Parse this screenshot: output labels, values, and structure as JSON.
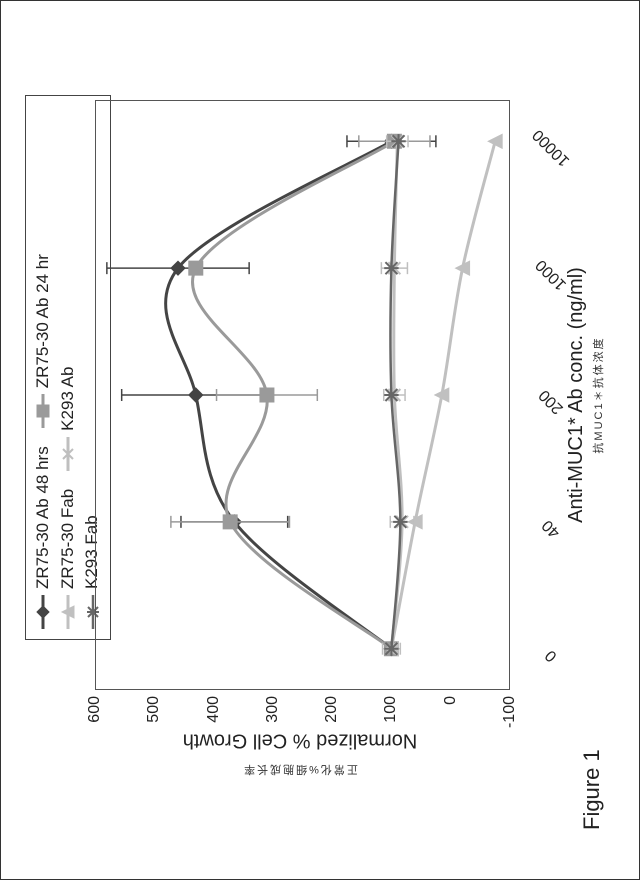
{
  "figure_label": "Figure 1",
  "xlabel": "Anti-MUC1* Ab conc. (ng/ml)",
  "ylabel": "Normalized % Cell Growth",
  "chinese_x": "抗MUC1＊抗体浓度",
  "chinese_y": "正常化%细胞成长率",
  "y_axis": {
    "min": -100,
    "max": 600,
    "ticks": [
      -100,
      0,
      100,
      200,
      300,
      400,
      500,
      600
    ]
  },
  "x_axis": {
    "ticks": [
      0,
      40,
      200,
      1000,
      10000
    ]
  },
  "colors": {
    "plot_border": "#555555",
    "text": "#222222",
    "background": "#ffffff"
  },
  "series": [
    {
      "name": "ZR75-30 Ab 48 hrs",
      "color": "#444444",
      "width": 3,
      "marker": "diamond",
      "marker_size": 7,
      "points": [
        {
          "x": 0,
          "y": 100,
          "err": 0
        },
        {
          "x": 40,
          "y": 365,
          "err": 90
        },
        {
          "x": 200,
          "y": 430,
          "err": 125
        },
        {
          "x": 1000,
          "y": 460,
          "err": 120
        },
        {
          "x": 10000,
          "y": 100,
          "err": 75
        }
      ]
    },
    {
      "name": "ZR75-30 Ab 24 hr",
      "color": "#9a9a9a",
      "width": 3,
      "marker": "square",
      "marker_size": 7,
      "points": [
        {
          "x": 0,
          "y": 100,
          "err": 0
        },
        {
          "x": 40,
          "y": 372,
          "err": 100
        },
        {
          "x": 200,
          "y": 310,
          "err": 85
        },
        {
          "x": 1000,
          "y": 430,
          "err": 0
        },
        {
          "x": 10000,
          "y": 95,
          "err": 60
        }
      ]
    },
    {
      "name": "ZR75-30 Fab",
      "color": "#c0c0c0",
      "width": 3,
      "marker": "triangle",
      "marker_size": 7,
      "points": [
        {
          "x": 0,
          "y": 100,
          "err": 0
        },
        {
          "x": 40,
          "y": 60,
          "err": 0
        },
        {
          "x": 200,
          "y": 15,
          "err": 0
        },
        {
          "x": 1000,
          "y": -20,
          "err": 0
        },
        {
          "x": 10000,
          "y": -75,
          "err": 0
        }
      ]
    },
    {
      "name": "K293 Ab",
      "color": "#bfbfbf",
      "width": 3,
      "marker": "x",
      "marker_size": 6,
      "points": [
        {
          "x": 0,
          "y": 100,
          "err": 15
        },
        {
          "x": 40,
          "y": 82,
          "err": 20
        },
        {
          "x": 200,
          "y": 95,
          "err": 18
        },
        {
          "x": 1000,
          "y": 95,
          "err": 22
        },
        {
          "x": 10000,
          "y": 90,
          "err": 18
        }
      ]
    },
    {
      "name": "K293 Fab",
      "color": "#666666",
      "width": 2.5,
      "marker": "star",
      "marker_size": 6,
      "points": [
        {
          "x": 0,
          "y": 100,
          "err": 0
        },
        {
          "x": 40,
          "y": 85,
          "err": 0
        },
        {
          "x": 200,
          "y": 100,
          "err": 0
        },
        {
          "x": 1000,
          "y": 100,
          "err": 0
        },
        {
          "x": 10000,
          "y": 88,
          "err": 0
        }
      ]
    }
  ],
  "legend_layout": [
    [
      "ZR75-30 Ab 48 hrs",
      "ZR75-30 Ab 24 hr"
    ],
    [
      "ZR75-30 Fab",
      "K293 Ab"
    ],
    [
      "K293 Fab"
    ]
  ]
}
